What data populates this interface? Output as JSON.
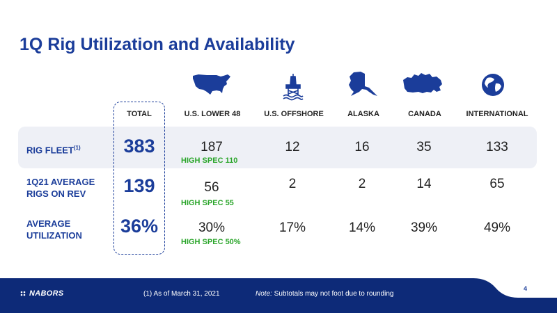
{
  "title": "1Q Rig Utilization and Availability",
  "columns": {
    "total": "TOTAL",
    "us_lower_48": "U.S. LOWER 48",
    "us_offshore": "U.S. OFFSHORE",
    "alaska": "ALASKA",
    "canada": "CANADA",
    "international": "INTERNATIONAL"
  },
  "icons": [
    "us-map-icon",
    "offshore-rig-icon",
    "alaska-map-icon",
    "canada-map-icon",
    "globe-icon"
  ],
  "rows": {
    "rig_fleet": {
      "label": "RIG FLEET",
      "footnote_marker": "(1)",
      "total": "383",
      "us_lower_48": "187",
      "us_lower_48_spec": "HIGH SPEC 110",
      "us_offshore": "12",
      "alaska": "16",
      "canada": "35",
      "international": "133"
    },
    "avg_rigs": {
      "label_line1": "1Q21 AVERAGE",
      "label_line2": "RIGS ON REV",
      "total": "139",
      "us_lower_48": "56",
      "us_lower_48_spec": "HIGH SPEC 55",
      "us_offshore": "2",
      "alaska": "2",
      "canada": "14",
      "international": "65"
    },
    "utilization": {
      "label_line1": "AVERAGE",
      "label_line2": "UTILIZATION",
      "total": "36%",
      "us_lower_48": "30%",
      "us_lower_48_spec": "HIGH SPEC 50%",
      "us_offshore": "17%",
      "alaska": "14%",
      "canada": "39%",
      "international": "49%"
    }
  },
  "footer": {
    "logo": "NABORS",
    "footnote": "(1) As of  March 31, 2021",
    "note_prefix": "Note:",
    "note_text": " Subtotals may not foot due to rounding",
    "page": "4"
  },
  "colors": {
    "brand_blue": "#1b3d9a",
    "accent_green": "#2aa52a",
    "footer_navy": "#0d2a78"
  }
}
